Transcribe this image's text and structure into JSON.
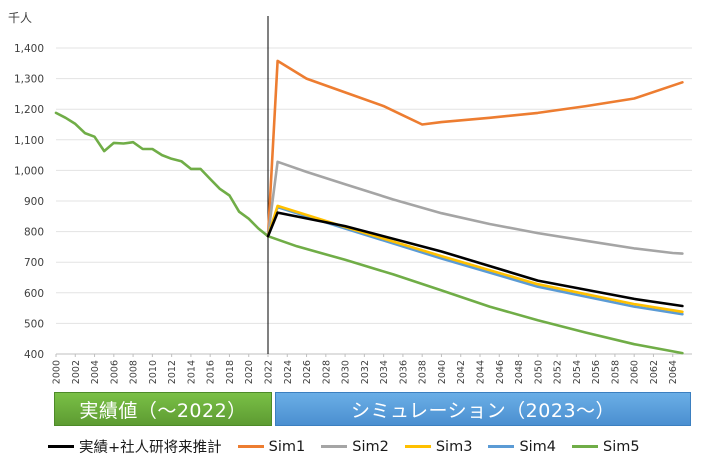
{
  "chart_data": {
    "type": "line",
    "ylabel": "千人",
    "ylim": [
      400,
      1400
    ],
    "yticks": [
      400,
      500,
      600,
      700,
      800,
      900,
      1000,
      1100,
      1200,
      1300,
      1400
    ],
    "ytick_labels": [
      "400",
      "500",
      "600",
      "700",
      "800",
      "900",
      "1,000",
      "1,100",
      "1,200",
      "1,300",
      "1,400"
    ],
    "xlim": [
      2000,
      2066
    ],
    "xtick_labels": [
      "2000",
      "2002",
      "2004",
      "2006",
      "2008",
      "2010",
      "2012",
      "2014",
      "2016",
      "2018",
      "2020",
      "2022",
      "2024",
      "2026",
      "2028",
      "2030",
      "2032",
      "2034",
      "2036",
      "2038",
      "2040",
      "2042",
      "2044",
      "2046",
      "2048",
      "2050",
      "2052",
      "2054",
      "2056",
      "2058",
      "2060",
      "2062",
      "2064"
    ],
    "divider_year": 2022,
    "bands": {
      "actual": "実績値（～2022）",
      "simulation": "シミュレーション（2023～）"
    },
    "series": [
      {
        "name": "実績+社人研将来推計",
        "color": "#000000",
        "points": [
          [
            2022,
            785
          ],
          [
            2023,
            862
          ],
          [
            2030,
            818
          ],
          [
            2040,
            735
          ],
          [
            2050,
            640
          ],
          [
            2060,
            580
          ],
          [
            2065,
            557
          ]
        ]
      },
      {
        "name": "Sim1",
        "color": "#ed7d31",
        "points": [
          [
            2022,
            785
          ],
          [
            2023,
            1358
          ],
          [
            2026,
            1300
          ],
          [
            2030,
            1255
          ],
          [
            2034,
            1210
          ],
          [
            2036,
            1180
          ],
          [
            2038,
            1150
          ],
          [
            2040,
            1158
          ],
          [
            2045,
            1172
          ],
          [
            2050,
            1188
          ],
          [
            2055,
            1210
          ],
          [
            2060,
            1235
          ],
          [
            2065,
            1288
          ]
        ]
      },
      {
        "name": "Sim2",
        "color": "#a5a5a5",
        "points": [
          [
            2022,
            785
          ],
          [
            2023,
            1028
          ],
          [
            2026,
            995
          ],
          [
            2030,
            955
          ],
          [
            2035,
            905
          ],
          [
            2040,
            860
          ],
          [
            2045,
            825
          ],
          [
            2050,
            795
          ],
          [
            2055,
            770
          ],
          [
            2060,
            745
          ],
          [
            2064,
            730
          ],
          [
            2065,
            728
          ]
        ]
      },
      {
        "name": "Sim3",
        "color": "#ffc000",
        "points": [
          [
            2022,
            785
          ],
          [
            2023,
            884
          ],
          [
            2030,
            815
          ],
          [
            2040,
            720
          ],
          [
            2050,
            628
          ],
          [
            2060,
            563
          ],
          [
            2065,
            538
          ]
        ]
      },
      {
        "name": "Sim4",
        "color": "#5b9bd5",
        "points": [
          [
            2022,
            785
          ],
          [
            2023,
            880
          ],
          [
            2030,
            810
          ],
          [
            2040,
            712
          ],
          [
            2050,
            620
          ],
          [
            2060,
            555
          ],
          [
            2065,
            530
          ]
        ]
      },
      {
        "name": "Sim5",
        "color": "#70ad47",
        "points": [
          [
            2000,
            1188
          ],
          [
            2001,
            1172
          ],
          [
            2002,
            1152
          ],
          [
            2003,
            1122
          ],
          [
            2004,
            1110
          ],
          [
            2005,
            1063
          ],
          [
            2006,
            1090
          ],
          [
            2007,
            1088
          ],
          [
            2008,
            1092
          ],
          [
            2009,
            1070
          ],
          [
            2010,
            1070
          ],
          [
            2011,
            1050
          ],
          [
            2012,
            1038
          ],
          [
            2013,
            1030
          ],
          [
            2014,
            1005
          ],
          [
            2015,
            1005
          ],
          [
            2016,
            972
          ],
          [
            2017,
            940
          ],
          [
            2018,
            918
          ],
          [
            2019,
            865
          ],
          [
            2020,
            842
          ],
          [
            2021,
            810
          ],
          [
            2022,
            785
          ],
          [
            2025,
            752
          ],
          [
            2030,
            708
          ],
          [
            2035,
            660
          ],
          [
            2040,
            608
          ],
          [
            2045,
            555
          ],
          [
            2050,
            510
          ],
          [
            2055,
            470
          ],
          [
            2060,
            432
          ],
          [
            2065,
            403
          ]
        ]
      }
    ]
  }
}
